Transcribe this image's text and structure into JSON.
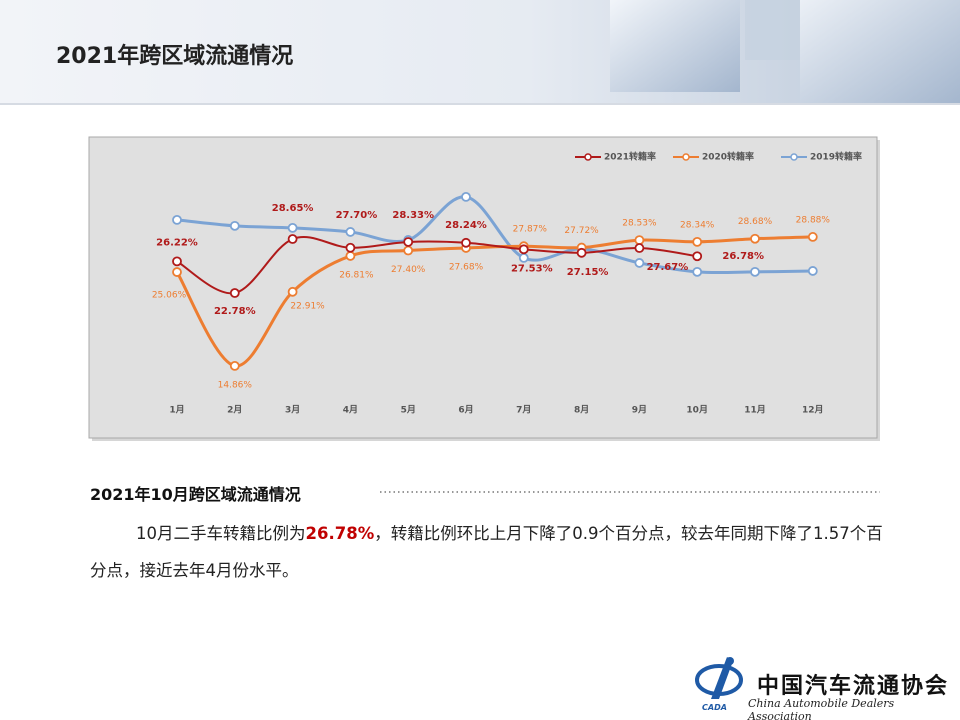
{
  "header": {
    "title": "2021年跨区域流通情况"
  },
  "chart_data": {
    "type": "line",
    "categories": [
      "1月",
      "2月",
      "3月",
      "4月",
      "5月",
      "6月",
      "7月",
      "8月",
      "9月",
      "10月",
      "11月",
      "12月"
    ],
    "series": [
      {
        "name": "2021转籍率",
        "color": "#b01a1a",
        "values": [
          26.22,
          22.78,
          28.65,
          27.7,
          28.33,
          28.24,
          27.53,
          27.15,
          27.67,
          26.78,
          null,
          null
        ],
        "value_labels": [
          "26.22%",
          "22.78%",
          "28.65%",
          "27.70%",
          "28.33%",
          "28.24%",
          "27.53%",
          "27.15%",
          "27.67%",
          "26.78%",
          null,
          null
        ]
      },
      {
        "name": "2020转籍率",
        "color": "#ed7d31",
        "values": [
          25.06,
          14.86,
          22.91,
          26.81,
          27.4,
          27.68,
          27.87,
          27.72,
          28.53,
          28.34,
          28.68,
          28.88
        ],
        "value_labels": [
          "25.06%",
          "14.86%",
          "22.91%",
          "26.81%",
          "27.40%",
          "27.68%",
          "27.87%",
          "27.72%",
          "28.53%",
          "28.34%",
          "28.68%",
          "28.88%"
        ]
      },
      {
        "name": "2019转籍率",
        "color": "#7ba3d4",
        "values": [
          30.73,
          30.08,
          29.86,
          29.42,
          28.55,
          33.23,
          26.6,
          27.58,
          26.05,
          25.08,
          25.08,
          25.18
        ]
      }
    ],
    "ylim": [
      13,
      35.5
    ],
    "legend": "top-right"
  },
  "section": {
    "title": "2021年10月跨区域流通情况",
    "text_before": "10月二手车转籍比例为",
    "highlight": "26.78%",
    "text_after": "，转籍比例环比上月下降了0.9个百分点，较去年同期下降了1.57个百分点，接近去年4月份水平。"
  },
  "logo": {
    "cn": "中国汽车流通协会",
    "en": "China Automobile Dealers Association",
    "abbr": "CADA"
  }
}
